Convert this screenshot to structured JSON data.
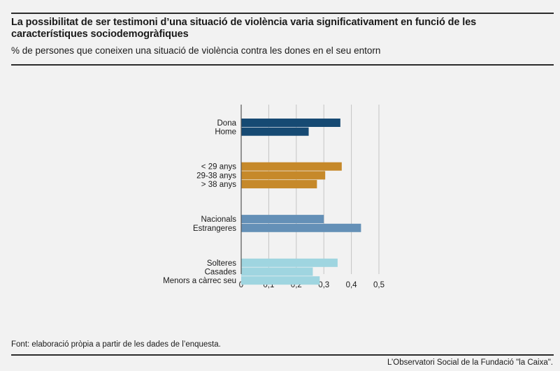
{
  "header": {
    "title": "La possibilitat de ser testimoni d’una situació de violència varia significativament en funció de les característiques sociodemogràfiques",
    "subtitle": "% de persones que coneixen una situació de violència contra les dones en el seu entorn"
  },
  "footer": {
    "source": "Font: elaboració pròpia a partir de les dades de l’enquesta.",
    "credit": "L’Observatori Social de la Fundació \"la Caixa\"."
  },
  "chart_data": {
    "type": "bar",
    "orientation": "horizontal",
    "xlim": [
      0,
      0.5
    ],
    "xticks": [
      "0",
      "0,1",
      "0,2",
      "0,3",
      "0,4",
      "0,5"
    ],
    "grid": true,
    "groups": [
      {
        "color": "#164a73",
        "bars": [
          {
            "label": "Dona",
            "value": 0.36
          },
          {
            "label": "Home",
            "value": 0.245
          }
        ]
      },
      {
        "color": "#c6892a",
        "bars": [
          {
            "label": "< 29 anys",
            "value": 0.365
          },
          {
            "label": "29-38 anys",
            "value": 0.305
          },
          {
            "label": "> 38 anys",
            "value": 0.275
          }
        ]
      },
      {
        "color": "#6490b7",
        "bars": [
          {
            "label": "Nacionals",
            "value": 0.3
          },
          {
            "label": "Estrangeres",
            "value": 0.435
          }
        ]
      },
      {
        "color": "#9fd5e0",
        "bars": [
          {
            "label": "Solteres",
            "value": 0.35
          },
          {
            "label": "Casades",
            "value": 0.26
          },
          {
            "label": "Menors a càrrec seu",
            "value": 0.285
          }
        ]
      }
    ]
  }
}
